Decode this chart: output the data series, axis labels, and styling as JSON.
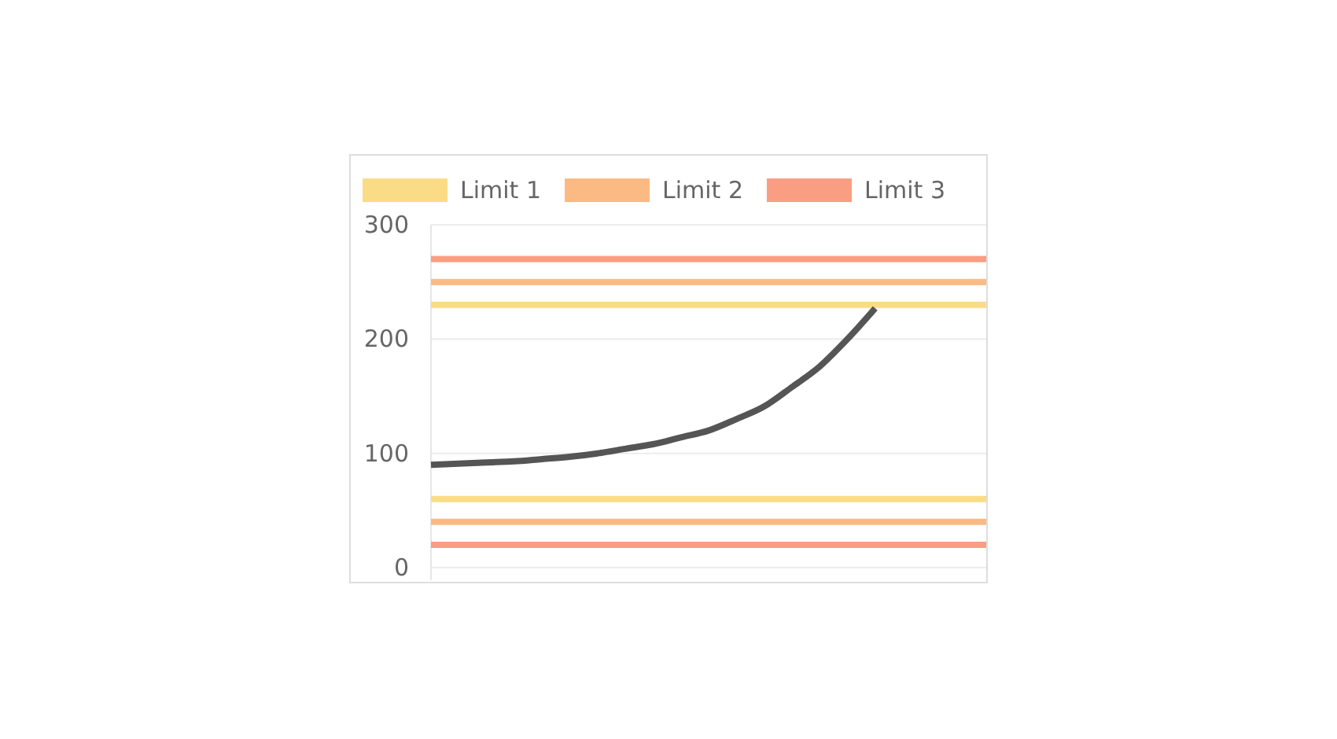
{
  "chart_data": {
    "type": "line",
    "categories": [
      null,
      null,
      null,
      null,
      null,
      null,
      null,
      null,
      null,
      null,
      null,
      null,
      null,
      null,
      null,
      null,
      null,
      null,
      null,
      null,
      null
    ],
    "series": [
      {
        "name": "Limit 1",
        "color": "#fadc86",
        "values": [
          230,
          230,
          230,
          230,
          230,
          230,
          230,
          230,
          230,
          230,
          230,
          230,
          230,
          230,
          230,
          230,
          230,
          230,
          230,
          230,
          230
        ]
      },
      {
        "name": "Limit 2",
        "color": "#fbba84",
        "values": [
          250,
          250,
          250,
          250,
          250,
          250,
          250,
          250,
          250,
          250,
          250,
          250,
          250,
          250,
          250,
          250,
          250,
          250,
          250,
          250,
          250
        ]
      },
      {
        "name": "Limit 3",
        "color": "#f99e82",
        "values": [
          270,
          270,
          270,
          270,
          270,
          270,
          270,
          270,
          270,
          270,
          270,
          270,
          270,
          270,
          270,
          270,
          270,
          270,
          270,
          270,
          270
        ]
      },
      {
        "color": "#fadc86",
        "values": [
          60,
          60,
          60,
          60,
          60,
          60,
          60,
          60,
          60,
          60,
          60,
          60,
          60,
          60,
          60,
          60,
          60,
          60,
          60,
          60,
          60
        ]
      },
      {
        "color": "#fbba84",
        "values": [
          40,
          40,
          40,
          40,
          40,
          40,
          40,
          40,
          40,
          40,
          40,
          40,
          40,
          40,
          40,
          40,
          40,
          40,
          40,
          40,
          40
        ]
      },
      {
        "color": "#f99e82",
        "values": [
          20,
          20,
          20,
          20,
          20,
          20,
          20,
          20,
          20,
          20,
          20,
          20,
          20,
          20,
          20,
          20,
          20,
          20,
          20,
          20,
          20
        ]
      },
      {
        "color": "#555555",
        "values": [
          90,
          91,
          92,
          93,
          95,
          97,
          100,
          104,
          108,
          114,
          120,
          130,
          141,
          158,
          176,
          200,
          227,
          null,
          null,
          null,
          null
        ]
      }
    ],
    "ylim": [
      0,
      300
    ],
    "yticks": [
      0,
      100,
      200,
      300
    ],
    "grid": "y",
    "legend": "top",
    "marker": "none",
    "line_style": "solid"
  }
}
